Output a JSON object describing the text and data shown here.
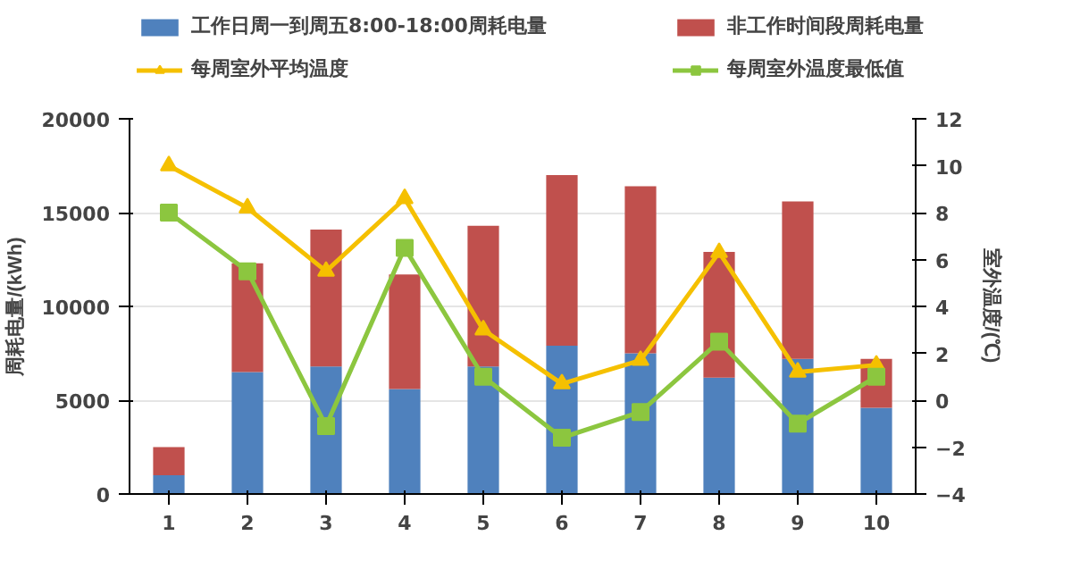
{
  "chart_data": {
    "type": "bar",
    "stacked": true,
    "categories": [
      "1",
      "2",
      "3",
      "4",
      "5",
      "6",
      "7",
      "8",
      "9",
      "10"
    ],
    "ylabel": "周耗电量/(kWh)",
    "y2label": "室外温度/(℃)",
    "ylim": [
      0,
      20000
    ],
    "yticks": [
      0,
      5000,
      10000,
      15000,
      20000
    ],
    "y2lim": [
      -4,
      12
    ],
    "y2ticks": [
      -4,
      -2,
      0,
      2,
      4,
      6,
      8,
      10,
      12
    ],
    "grid": "y",
    "legend": "top",
    "series": [
      {
        "name": "工作日周一到周五8:00-18:00周耗电量",
        "color": "#4f81bd",
        "values": [
          1000,
          6500,
          6800,
          5600,
          6800,
          7900,
          7500,
          6200,
          7200,
          4600
        ]
      },
      {
        "name": "非工作时间段周耗电量",
        "color": "#c0504d",
        "values": [
          1500,
          5800,
          7300,
          6100,
          7500,
          9100,
          8900,
          6700,
          8400,
          2600
        ]
      },
      {
        "name": "每周室外平均温度",
        "type": "line",
        "axis": "y2",
        "marker": "triangle",
        "color": "#f5c000",
        "values": [
          10,
          8.2,
          5.5,
          8.6,
          3,
          0.7,
          1.7,
          6.3,
          1.2,
          1.5
        ]
      },
      {
        "name": "每周室外温度最低值",
        "type": "line",
        "axis": "y2",
        "marker": "square",
        "color": "#8cc63f",
        "values": [
          8,
          5.5,
          -1.1,
          6.5,
          1,
          -1.6,
          -0.5,
          2.5,
          -1,
          1
        ]
      }
    ]
  }
}
